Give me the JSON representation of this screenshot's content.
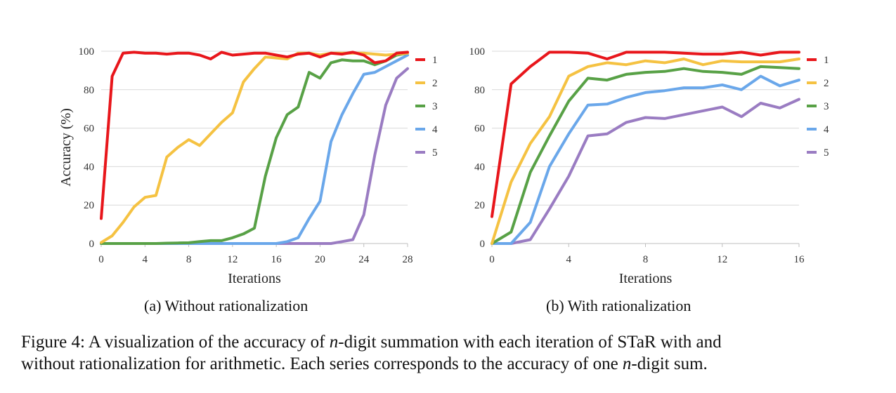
{
  "chart_data": [
    {
      "type": "line",
      "title": "",
      "xlabel": "Iterations",
      "ylabel": "Accuracy (%)",
      "xlim": [
        0,
        28
      ],
      "ylim": [
        0,
        100
      ],
      "xticks": [
        0,
        4,
        8,
        12,
        16,
        20,
        24,
        28
      ],
      "yticks": [
        0,
        20,
        40,
        60,
        80,
        100
      ],
      "grid": "horizontal",
      "legend_position": "right",
      "subcaption": "(a) Without rationalization",
      "x": [
        0,
        1,
        2,
        3,
        4,
        5,
        6,
        7,
        8,
        9,
        10,
        11,
        12,
        13,
        14,
        15,
        16,
        17,
        18,
        19,
        20,
        21,
        22,
        23,
        24,
        25,
        26,
        27,
        28
      ],
      "series": [
        {
          "name": "1",
          "color": "#e8161b",
          "values": [
            13,
            87,
            99,
            99.5,
            99,
            99,
            98.5,
            99,
            99,
            98,
            96,
            99.5,
            98,
            98.5,
            99,
            99,
            98,
            97,
            98.5,
            99,
            97,
            99,
            98.5,
            99.5,
            98,
            94,
            95,
            99,
            99.5
          ]
        },
        {
          "name": "2",
          "color": "#f5c242",
          "values": [
            0.5,
            4,
            11,
            19,
            24,
            25,
            45,
            50,
            54,
            51,
            57,
            63,
            68,
            84,
            91,
            97,
            96.5,
            96,
            99,
            99,
            98,
            99,
            99,
            99,
            99,
            98.5,
            98,
            98.5,
            99
          ]
        },
        {
          "name": "3",
          "color": "#58a146",
          "values": [
            0,
            0,
            0,
            0,
            0,
            0,
            0.2,
            0.3,
            0.4,
            1,
            1.5,
            1.5,
            3,
            5,
            8,
            35,
            55,
            67,
            71,
            89,
            86,
            94,
            95.5,
            95,
            95,
            93,
            95,
            98,
            99
          ]
        },
        {
          "name": "4",
          "color": "#6aa7ea",
          "values": [
            0,
            0,
            0,
            0,
            0,
            0,
            0,
            0,
            0,
            0,
            0,
            0,
            0,
            0,
            0,
            0,
            0,
            1,
            3,
            13,
            22,
            53,
            67,
            78,
            88,
            89,
            92,
            95,
            98
          ]
        },
        {
          "name": "5",
          "color": "#9a7cc2",
          "values": [
            0,
            0,
            0,
            0,
            0,
            0,
            0,
            0,
            0,
            0,
            0,
            0,
            0,
            0,
            0,
            0,
            0,
            0,
            0,
            0,
            0,
            0,
            1,
            2,
            15,
            46,
            72,
            86,
            91
          ]
        }
      ]
    },
    {
      "type": "line",
      "title": "",
      "xlabel": "Iterations",
      "ylabel": "",
      "xlim": [
        0,
        16
      ],
      "ylim": [
        0,
        100
      ],
      "xticks": [
        0,
        4,
        8,
        12,
        16
      ],
      "yticks": [
        0,
        20,
        40,
        60,
        80,
        100
      ],
      "grid": "horizontal",
      "legend_position": "right",
      "subcaption": "(b) With rationalization",
      "x": [
        0,
        1,
        2,
        3,
        4,
        5,
        6,
        7,
        8,
        9,
        10,
        11,
        12,
        13,
        14,
        15,
        16
      ],
      "series": [
        {
          "name": "1",
          "color": "#e8161b",
          "values": [
            14,
            83,
            92,
            99.5,
            99.5,
            99,
            96,
            99.5,
            99.5,
            99.5,
            99,
            98.5,
            98.5,
            99.5,
            98,
            99.5,
            99.5
          ]
        },
        {
          "name": "2",
          "color": "#f5c242",
          "values": [
            0,
            32,
            52,
            66,
            87,
            92,
            94,
            93,
            95,
            94,
            96,
            93,
            95,
            94.5,
            94.5,
            94.5,
            96
          ]
        },
        {
          "name": "3",
          "color": "#58a146",
          "values": [
            0,
            6,
            37,
            56,
            74,
            86,
            85,
            88,
            89,
            89.5,
            91,
            89.5,
            89,
            88,
            92,
            91.5,
            91
          ]
        },
        {
          "name": "4",
          "color": "#6aa7ea",
          "values": [
            0,
            0,
            11,
            40,
            57,
            72,
            72.5,
            76,
            78.5,
            79.5,
            81,
            81,
            82.5,
            80,
            87,
            82,
            85
          ]
        },
        {
          "name": "5",
          "color": "#9a7cc2",
          "values": [
            0,
            0,
            2,
            18,
            35,
            56,
            57,
            63,
            65.5,
            65,
            67,
            69,
            71,
            66,
            73,
            70.5,
            75
          ]
        }
      ]
    }
  ],
  "caption": {
    "line1_prefix": "Figure 4: A visualization of the accuracy of ",
    "var": "n",
    "line1_suffix": "-digit summation with each iteration of STaR with and",
    "line2_prefix": "without rationalization for arithmetic. Each series corresponds to the accuracy of one ",
    "line2_suffix": "-digit sum."
  }
}
